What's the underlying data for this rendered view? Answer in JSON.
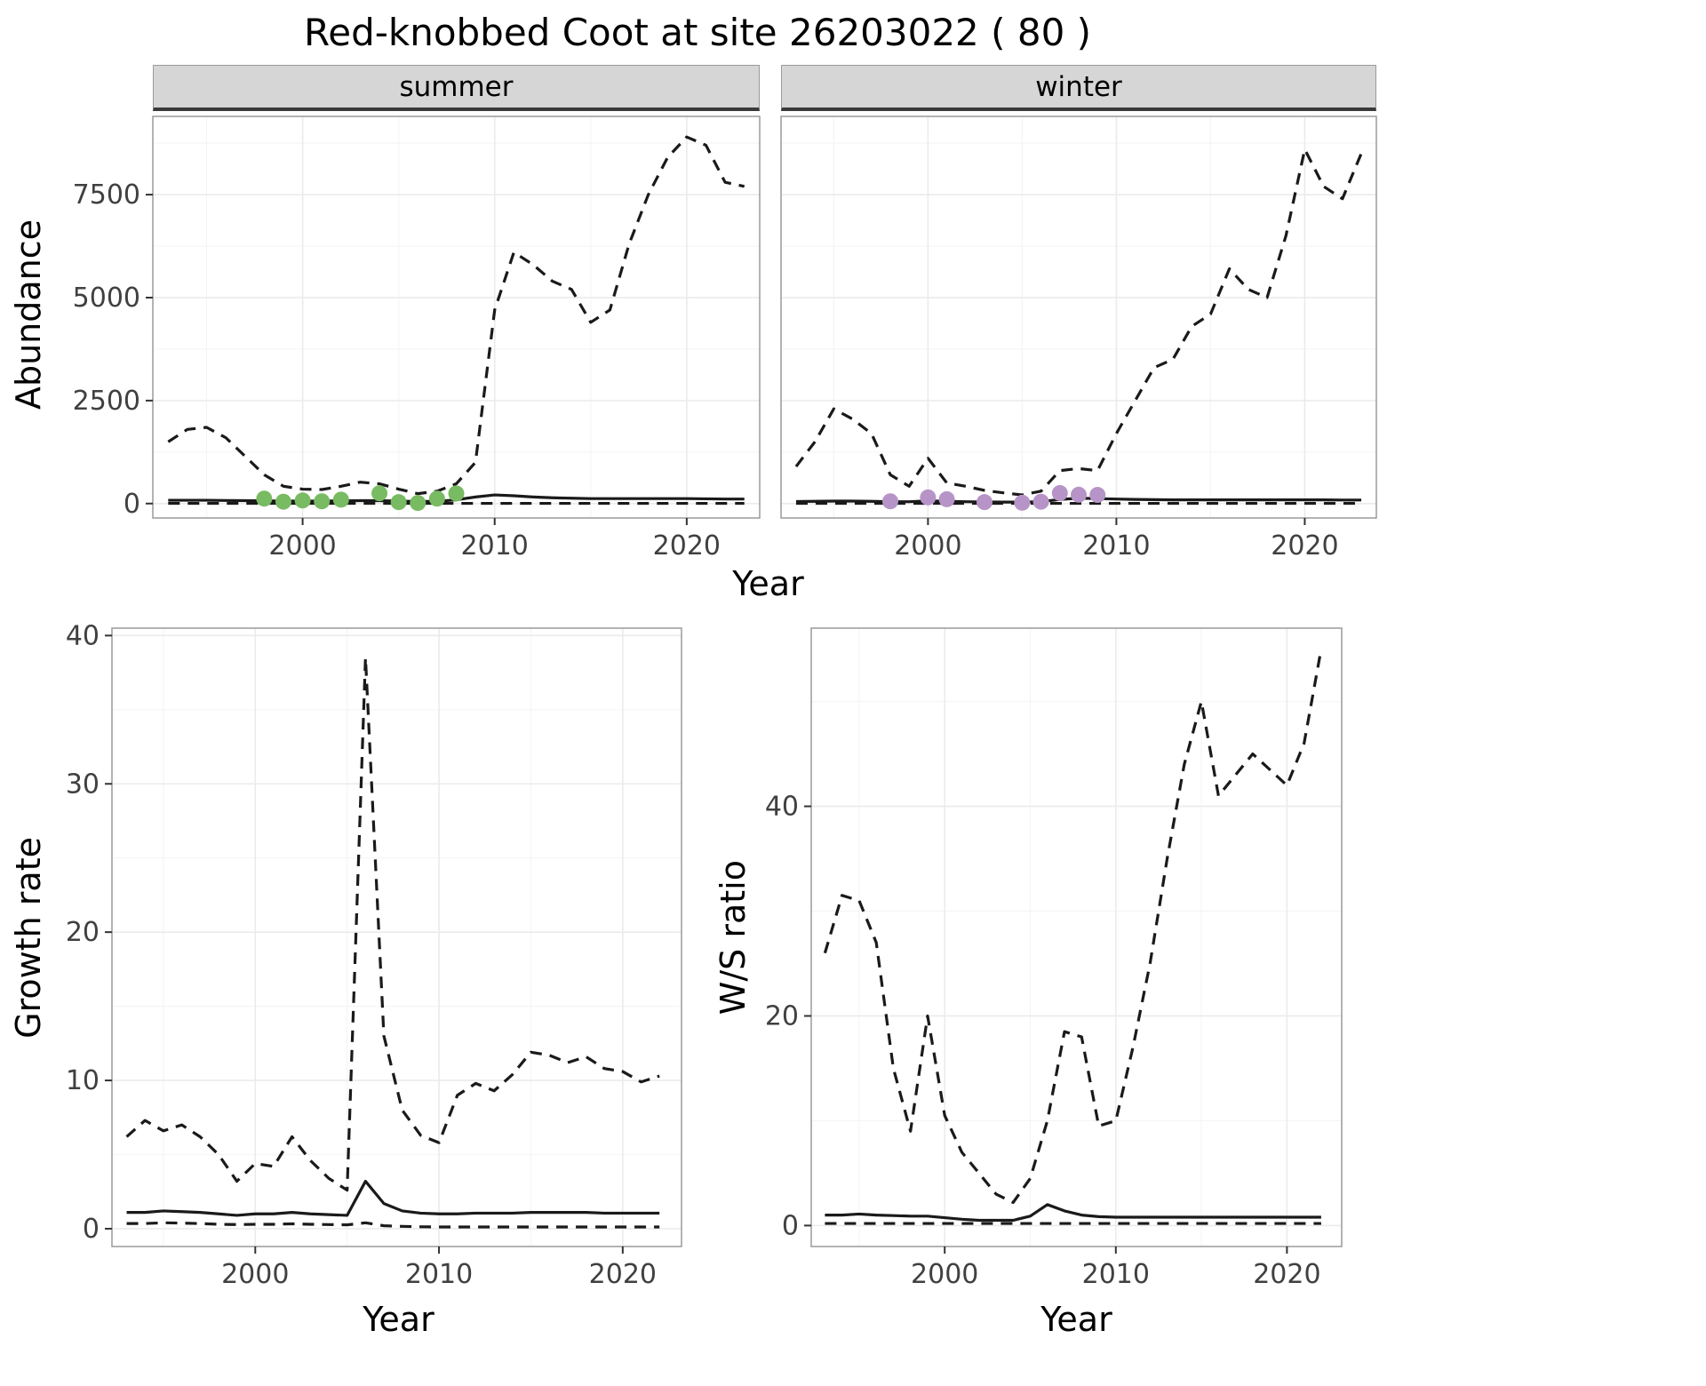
{
  "title": "Red-knobbed Coot at site 26203022 ( 80 )",
  "axes": {
    "abundance_ylabel": "Abundance",
    "top_xlabel": "Year",
    "growth_ylabel": "Growth rate",
    "growth_xlabel": "Year",
    "ws_ylabel": "W/S ratio",
    "ws_xlabel": "Year"
  },
  "facets": {
    "summer": "summer",
    "winter": "winter"
  },
  "colors": {
    "line": "#1a1a1a",
    "summer_points": "#78bb62",
    "winter_points": "#b794c7",
    "strip_bg": "#d6d6d6",
    "grid_major": "#ebebeb",
    "grid_minor": "#f5f5f5",
    "panel_border": "#9a9a9a",
    "tick_text": "#404040",
    "tick_mark": "#333333"
  },
  "chart_data": [
    {
      "id": "abundance-summer",
      "type": "line",
      "facet_label": "summer",
      "xlabel": "Year",
      "ylabel": "Abundance",
      "xlim": [
        1992.2,
        2023.8
      ],
      "ylim": [
        -350,
        9400
      ],
      "xticks": [
        2000,
        2010,
        2020
      ],
      "yticks": [
        0,
        2500,
        5000,
        7500
      ],
      "x": [
        1993,
        1994,
        1995,
        1996,
        1997,
        1998,
        1999,
        2000,
        2001,
        2002,
        2003,
        2004,
        2005,
        2006,
        2007,
        2008,
        2009,
        2010,
        2011,
        2012,
        2013,
        2014,
        2015,
        2016,
        2017,
        2018,
        2019,
        2020,
        2021,
        2022,
        2023
      ],
      "series": [
        {
          "name": "upper-ci",
          "style": "dashed",
          "values": [
            1500,
            1800,
            1850,
            1600,
            1150,
            700,
            420,
            350,
            340,
            420,
            520,
            480,
            350,
            240,
            300,
            480,
            1000,
            4700,
            6100,
            5800,
            5400,
            5200,
            4400,
            4700,
            6300,
            7500,
            8400,
            8900,
            8700,
            7800,
            7700
          ]
        },
        {
          "name": "mean",
          "style": "solid",
          "values": [
            80,
            80,
            80,
            75,
            70,
            65,
            60,
            60,
            60,
            65,
            70,
            70,
            60,
            50,
            55,
            90,
            160,
            210,
            190,
            160,
            140,
            130,
            120,
            120,
            120,
            120,
            120,
            120,
            115,
            110,
            110
          ]
        },
        {
          "name": "lower-ci",
          "style": "dashed",
          "values": [
            5,
            5,
            5,
            5,
            5,
            5,
            5,
            5,
            5,
            5,
            5,
            5,
            5,
            5,
            5,
            5,
            5,
            5,
            5,
            5,
            5,
            5,
            5,
            5,
            5,
            5,
            5,
            5,
            5,
            5,
            5
          ]
        }
      ],
      "points": {
        "name": "observed-counts-summer",
        "color": "#78bb62",
        "x": [
          1998,
          1999,
          2000,
          2001,
          2002,
          2004,
          2005,
          2006,
          2007,
          2008
        ],
        "y": [
          120,
          45,
          75,
          55,
          95,
          250,
          35,
          15,
          120,
          245
        ]
      }
    },
    {
      "id": "abundance-winter",
      "type": "line",
      "facet_label": "winter",
      "xlabel": "Year",
      "ylabel": "Abundance",
      "xlim": [
        1992.2,
        2023.8
      ],
      "ylim": [
        -350,
        9400
      ],
      "xticks": [
        2000,
        2010,
        2020
      ],
      "yticks": [
        0,
        2500,
        5000,
        7500
      ],
      "x": [
        1993,
        1994,
        1995,
        1996,
        1997,
        1998,
        1999,
        2000,
        2001,
        2002,
        2003,
        2004,
        2005,
        2006,
        2007,
        2008,
        2009,
        2010,
        2011,
        2012,
        2013,
        2014,
        2015,
        2016,
        2017,
        2018,
        2019,
        2020,
        2021,
        2022,
        2023
      ],
      "series": [
        {
          "name": "upper-ci",
          "style": "dashed",
          "values": [
            900,
            1500,
            2300,
            2050,
            1700,
            700,
            420,
            1100,
            500,
            420,
            320,
            260,
            210,
            300,
            800,
            850,
            800,
            1700,
            2500,
            3300,
            3500,
            4300,
            4600,
            5700,
            5200,
            5000,
            6500,
            8600,
            7700,
            7400,
            8500
          ]
        },
        {
          "name": "mean",
          "style": "solid",
          "values": [
            50,
            55,
            60,
            60,
            55,
            45,
            45,
            65,
            55,
            45,
            40,
            35,
            35,
            45,
            100,
            130,
            120,
            110,
            100,
            95,
            90,
            90,
            90,
            90,
            90,
            90,
            90,
            90,
            90,
            85,
            85
          ]
        },
        {
          "name": "lower-ci",
          "style": "dashed",
          "values": [
            5,
            5,
            5,
            5,
            5,
            5,
            5,
            5,
            5,
            5,
            5,
            5,
            5,
            5,
            5,
            5,
            5,
            5,
            5,
            5,
            5,
            5,
            5,
            5,
            5,
            5,
            5,
            5,
            5,
            5,
            5
          ]
        }
      ],
      "points": {
        "name": "observed-counts-winter",
        "color": "#b794c7",
        "x": [
          1998,
          2000,
          2001,
          2003,
          2005,
          2006,
          2007,
          2008,
          2009
        ],
        "y": [
          55,
          150,
          105,
          35,
          20,
          45,
          255,
          215,
          210
        ]
      }
    },
    {
      "id": "growth-rate",
      "type": "line",
      "xlabel": "Year",
      "ylabel": "Growth rate",
      "xlim": [
        1992.2,
        2023.2
      ],
      "ylim": [
        -1.2,
        40.5
      ],
      "xticks": [
        2000,
        2010,
        2020
      ],
      "yticks": [
        0,
        10,
        20,
        30,
        40
      ],
      "x": [
        1993,
        1994,
        1995,
        1996,
        1997,
        1998,
        1999,
        2000,
        2001,
        2002,
        2003,
        2004,
        2005,
        2006,
        2007,
        2008,
        2009,
        2010,
        2011,
        2012,
        2013,
        2014,
        2015,
        2016,
        2017,
        2018,
        2019,
        2020,
        2021,
        2022
      ],
      "series": [
        {
          "name": "upper-ci",
          "style": "dashed",
          "values": [
            6.2,
            7.3,
            6.6,
            7.0,
            6.2,
            5.0,
            3.2,
            4.4,
            4.2,
            6.2,
            4.6,
            3.4,
            2.6,
            38.5,
            13.0,
            8.0,
            6.3,
            5.8,
            9.0,
            9.8,
            9.3,
            10.4,
            11.9,
            11.7,
            11.2,
            11.6,
            10.8,
            10.6,
            9.9,
            10.3
          ]
        },
        {
          "name": "mean",
          "style": "solid",
          "values": [
            1.1,
            1.1,
            1.2,
            1.15,
            1.1,
            1.0,
            0.9,
            1.0,
            1.0,
            1.1,
            1.0,
            0.95,
            0.9,
            3.2,
            1.7,
            1.2,
            1.05,
            1.0,
            1.0,
            1.05,
            1.05,
            1.05,
            1.1,
            1.1,
            1.1,
            1.1,
            1.05,
            1.05,
            1.05,
            1.05
          ]
        },
        {
          "name": "lower-ci",
          "style": "dashed",
          "values": [
            0.35,
            0.35,
            0.4,
            0.38,
            0.35,
            0.3,
            0.28,
            0.3,
            0.3,
            0.33,
            0.3,
            0.28,
            0.26,
            0.4,
            0.2,
            0.16,
            0.13,
            0.12,
            0.12,
            0.12,
            0.12,
            0.12,
            0.12,
            0.12,
            0.12,
            0.12,
            0.12,
            0.12,
            0.12,
            0.12
          ]
        }
      ]
    },
    {
      "id": "ws-ratio",
      "type": "line",
      "xlabel": "Year",
      "ylabel": "W/S ratio",
      "xlim": [
        1992.2,
        2023.2
      ],
      "ylim": [
        -2,
        57
      ],
      "xticks": [
        2000,
        2010,
        2020
      ],
      "yticks": [
        0,
        20,
        40
      ],
      "x": [
        1993,
        1994,
        1995,
        1996,
        1997,
        1998,
        1999,
        2000,
        2001,
        2002,
        2003,
        2004,
        2005,
        2006,
        2007,
        2008,
        2009,
        2010,
        2011,
        2012,
        2013,
        2014,
        2015,
        2016,
        2017,
        2018,
        2019,
        2020,
        2021,
        2022
      ],
      "series": [
        {
          "name": "upper-ci",
          "style": "dashed",
          "values": [
            26,
            31.5,
            31,
            27,
            15,
            9,
            20,
            10.5,
            7,
            5,
            3,
            2.2,
            4.5,
            10,
            18.5,
            18,
            9.5,
            10,
            17,
            25,
            35,
            44,
            50,
            41,
            43,
            45,
            43.5,
            42,
            46,
            55
          ]
        },
        {
          "name": "mean",
          "style": "solid",
          "values": [
            1.0,
            1.0,
            1.1,
            1.0,
            0.95,
            0.9,
            0.9,
            0.75,
            0.6,
            0.5,
            0.5,
            0.5,
            0.9,
            2.0,
            1.4,
            1.0,
            0.85,
            0.8,
            0.8,
            0.8,
            0.8,
            0.8,
            0.8,
            0.8,
            0.8,
            0.8,
            0.8,
            0.8,
            0.8,
            0.8
          ]
        },
        {
          "name": "lower-ci",
          "style": "dashed",
          "values": [
            0.2,
            0.2,
            0.2,
            0.2,
            0.2,
            0.2,
            0.2,
            0.2,
            0.2,
            0.2,
            0.2,
            0.2,
            0.2,
            0.2,
            0.2,
            0.2,
            0.2,
            0.2,
            0.2,
            0.2,
            0.2,
            0.2,
            0.2,
            0.2,
            0.2,
            0.2,
            0.2,
            0.2,
            0.2,
            0.2
          ]
        }
      ]
    }
  ]
}
